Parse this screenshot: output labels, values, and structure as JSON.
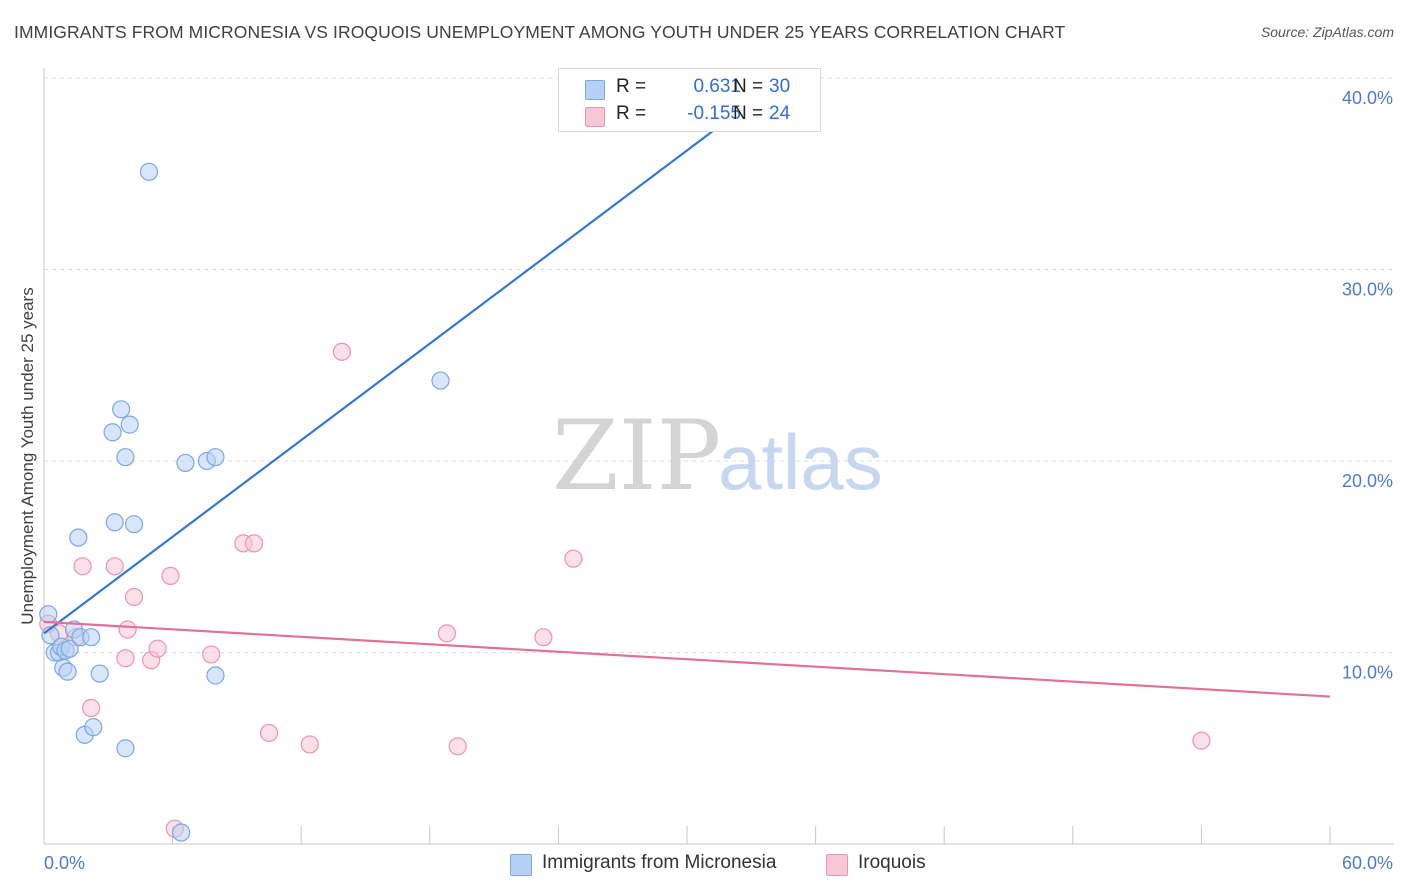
{
  "header": {
    "title": "IMMIGRANTS FROM MICRONESIA VS IROQUOIS UNEMPLOYMENT AMONG YOUTH UNDER 25 YEARS CORRELATION CHART",
    "source": "Source: ZipAtlas.com"
  },
  "watermark": {
    "part1": "ZIP",
    "part2": "atlas"
  },
  "legend": {
    "rows": [
      {
        "r_label": "R =",
        "r_value": "0.631",
        "n_label": "N =",
        "n_value": "30",
        "color": "#b7d1f5",
        "border": "#7ea6e0"
      },
      {
        "r_label": "R =",
        "r_value": "-0.155",
        "n_label": "N =",
        "n_value": "24",
        "color": "#f8c7d6",
        "border": "#e995b0"
      }
    ]
  },
  "bottom_legend": [
    {
      "label": "Immigrants from Micronesia",
      "color": "#b7d1f5",
      "border": "#7ea6e0"
    },
    {
      "label": "Iroquois",
      "color": "#f8c7d6",
      "border": "#e995b0"
    }
  ],
  "chart_data": {
    "type": "scatter",
    "title": "IMMIGRANTS FROM MICRONESIA VS IROQUOIS UNEMPLOYMENT AMONG YOUTH UNDER 25 YEARS CORRELATION CHART",
    "xlabel": "",
    "ylabel": "Unemployment Among Youth under 25 years",
    "xlim": [
      0,
      60
    ],
    "ylim": [
      0,
      40
    ],
    "x_tick_labels": [
      {
        "value": 0,
        "label": "0.0%"
      },
      {
        "value": 60,
        "label": "60.0%"
      }
    ],
    "y_tick_labels": [
      {
        "value": 10,
        "label": "10.0%"
      },
      {
        "value": 20,
        "label": "20.0%"
      },
      {
        "value": 30,
        "label": "30.0%"
      },
      {
        "value": 40,
        "label": "40.0%"
      }
    ],
    "series": [
      {
        "name": "Immigrants from Micronesia",
        "color": "#7ea6e0",
        "fill": "#b7d1f5",
        "line_color": "#3477d4",
        "trend": {
          "x0": 0,
          "y0": 11.0,
          "x1": 34.5,
          "y1": 40.0
        },
        "points": [
          [
            0.2,
            12.0
          ],
          [
            0.3,
            10.9
          ],
          [
            0.5,
            10.0
          ],
          [
            0.7,
            10.0
          ],
          [
            0.8,
            10.3
          ],
          [
            0.9,
            9.2
          ],
          [
            1.0,
            10.1
          ],
          [
            1.1,
            9.0
          ],
          [
            1.2,
            10.2
          ],
          [
            1.4,
            11.2
          ],
          [
            1.6,
            16.0
          ],
          [
            1.7,
            10.8
          ],
          [
            1.9,
            5.7
          ],
          [
            2.2,
            10.8
          ],
          [
            2.3,
            6.1
          ],
          [
            2.6,
            8.9
          ],
          [
            3.2,
            21.5
          ],
          [
            3.3,
            16.8
          ],
          [
            3.6,
            22.7
          ],
          [
            3.8,
            5.0
          ],
          [
            3.8,
            20.2
          ],
          [
            4.0,
            21.9
          ],
          [
            4.2,
            16.7
          ],
          [
            4.9,
            35.1
          ],
          [
            6.4,
            0.6
          ],
          [
            6.6,
            19.9
          ],
          [
            7.6,
            20.0
          ],
          [
            8.0,
            20.2
          ],
          [
            8.0,
            8.8
          ],
          [
            18.5,
            24.2
          ]
        ]
      },
      {
        "name": "Iroquois",
        "color": "#e995b0",
        "fill": "#f8c7d6",
        "line_color": "#e2709a",
        "trend": {
          "x0": 0,
          "y0": 11.6,
          "x1": 60,
          "y1": 7.7
        },
        "points": [
          [
            0.2,
            11.5
          ],
          [
            0.7,
            11.0
          ],
          [
            1.5,
            10.8
          ],
          [
            1.8,
            14.5
          ],
          [
            2.2,
            7.1
          ],
          [
            3.3,
            14.5
          ],
          [
            3.8,
            9.7
          ],
          [
            3.9,
            11.2
          ],
          [
            4.2,
            12.9
          ],
          [
            5.0,
            9.6
          ],
          [
            5.3,
            10.2
          ],
          [
            5.9,
            14.0
          ],
          [
            6.1,
            0.8
          ],
          [
            7.8,
            9.9
          ],
          [
            9.3,
            15.7
          ],
          [
            9.8,
            15.7
          ],
          [
            10.5,
            5.8
          ],
          [
            12.4,
            5.2
          ],
          [
            13.9,
            25.7
          ],
          [
            18.8,
            11.0
          ],
          [
            19.3,
            5.1
          ],
          [
            23.3,
            10.8
          ],
          [
            24.7,
            14.9
          ],
          [
            54.0,
            5.4
          ]
        ]
      }
    ]
  }
}
